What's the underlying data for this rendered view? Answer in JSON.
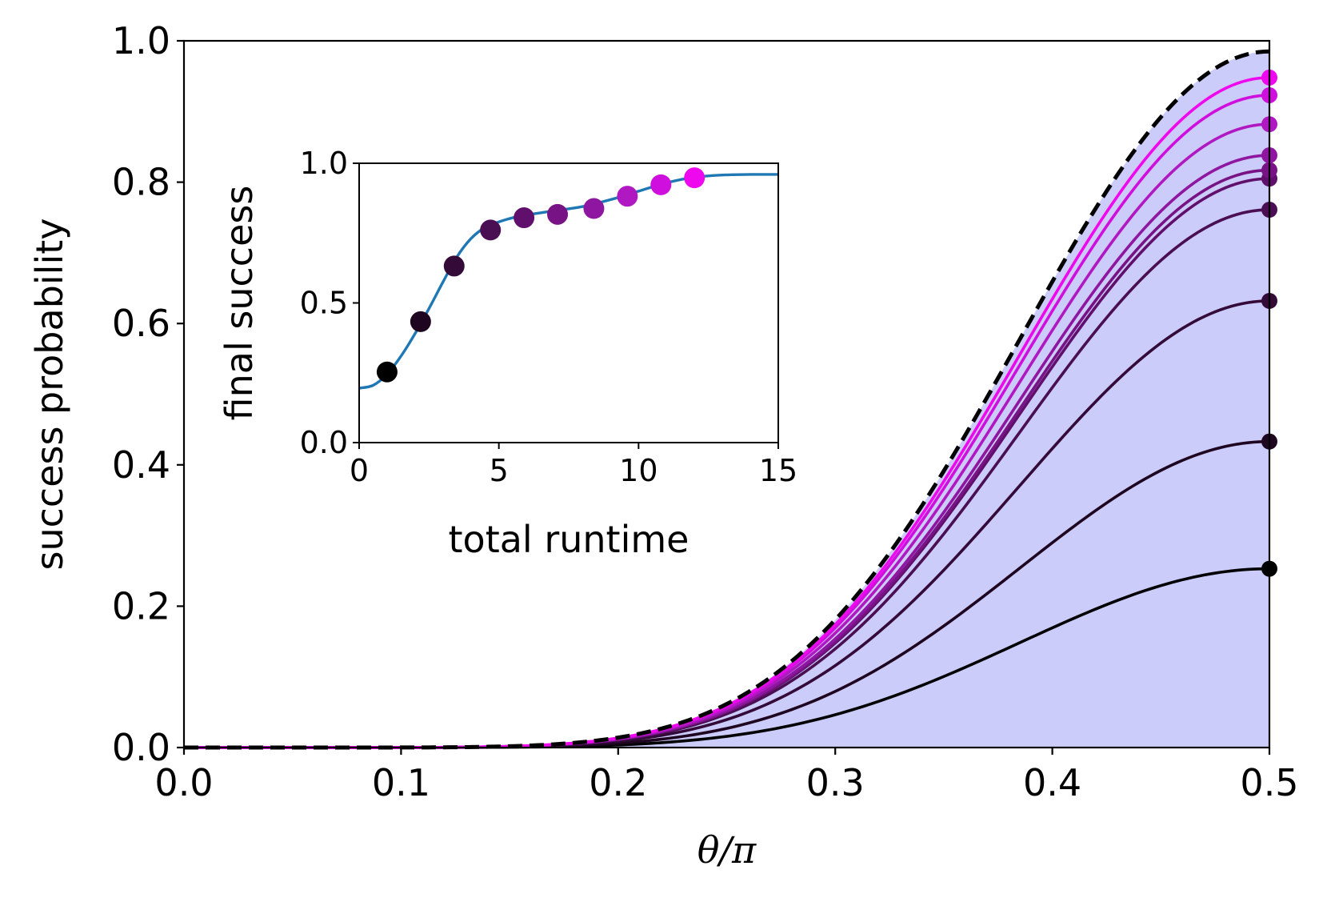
{
  "chart_data": [
    {
      "type": "line",
      "role": "main",
      "xlabel": "θ/π",
      "ylabel": "success probability",
      "xlim": [
        0.0,
        0.5
      ],
      "ylim": [
        0.0,
        1.0
      ],
      "xticks": [
        "0.0",
        "0.1",
        "0.2",
        "0.3",
        "0.4",
        "0.5"
      ],
      "yticks": [
        "0.0",
        "0.2",
        "0.4",
        "0.6",
        "0.8",
        "1.0"
      ],
      "grid": false,
      "shaded_region_color": "#ccccfa",
      "envelope": {
        "style": "dashed",
        "color": "#000000",
        "peak": 0.985
      },
      "series": [
        {
          "peak": 0.253,
          "color": "#000000"
        },
        {
          "peak": 0.433,
          "color": "#1e0620"
        },
        {
          "peak": 0.632,
          "color": "#330a38"
        },
        {
          "peak": 0.761,
          "color": "#4a0f52"
        },
        {
          "peak": 0.805,
          "color": "#600f6c"
        },
        {
          "peak": 0.817,
          "color": "#781386"
        },
        {
          "peak": 0.838,
          "color": "#8f16a0"
        },
        {
          "peak": 0.882,
          "color": "#b018c2"
        },
        {
          "peak": 0.923,
          "color": "#cf0fdd"
        },
        {
          "peak": 0.948,
          "color": "#ee08ee"
        }
      ]
    },
    {
      "type": "line",
      "role": "inset",
      "xlabel": "total runtime",
      "ylabel": "final success",
      "xlim": [
        0,
        15
      ],
      "ylim": [
        0.0,
        1.0
      ],
      "xticks": [
        "0",
        "5",
        "10",
        "15"
      ],
      "yticks": [
        "0.0",
        "0.5",
        "1.0"
      ],
      "grid": false,
      "line_color": "#1f77b4",
      "curve": {
        "x": [
          0,
          0.5,
          1,
          1.5,
          2,
          2.5,
          3,
          3.5,
          4,
          4.5,
          5,
          5.5,
          6,
          7,
          8,
          9,
          10,
          11,
          12,
          13,
          14,
          15
        ],
        "y": [
          0.195,
          0.205,
          0.245,
          0.31,
          0.39,
          0.48,
          0.575,
          0.665,
          0.73,
          0.77,
          0.79,
          0.805,
          0.815,
          0.83,
          0.845,
          0.87,
          0.9,
          0.93,
          0.95,
          0.958,
          0.96,
          0.96
        ]
      },
      "points": [
        {
          "x": 1.0,
          "y": 0.253
        },
        {
          "x": 2.2,
          "y": 0.433
        },
        {
          "x": 3.4,
          "y": 0.632
        },
        {
          "x": 4.7,
          "y": 0.761
        },
        {
          "x": 5.9,
          "y": 0.805
        },
        {
          "x": 7.1,
          "y": 0.817
        },
        {
          "x": 8.4,
          "y": 0.838
        },
        {
          "x": 9.6,
          "y": 0.882
        },
        {
          "x": 10.8,
          "y": 0.923
        },
        {
          "x": 12.0,
          "y": 0.948
        }
      ]
    }
  ]
}
